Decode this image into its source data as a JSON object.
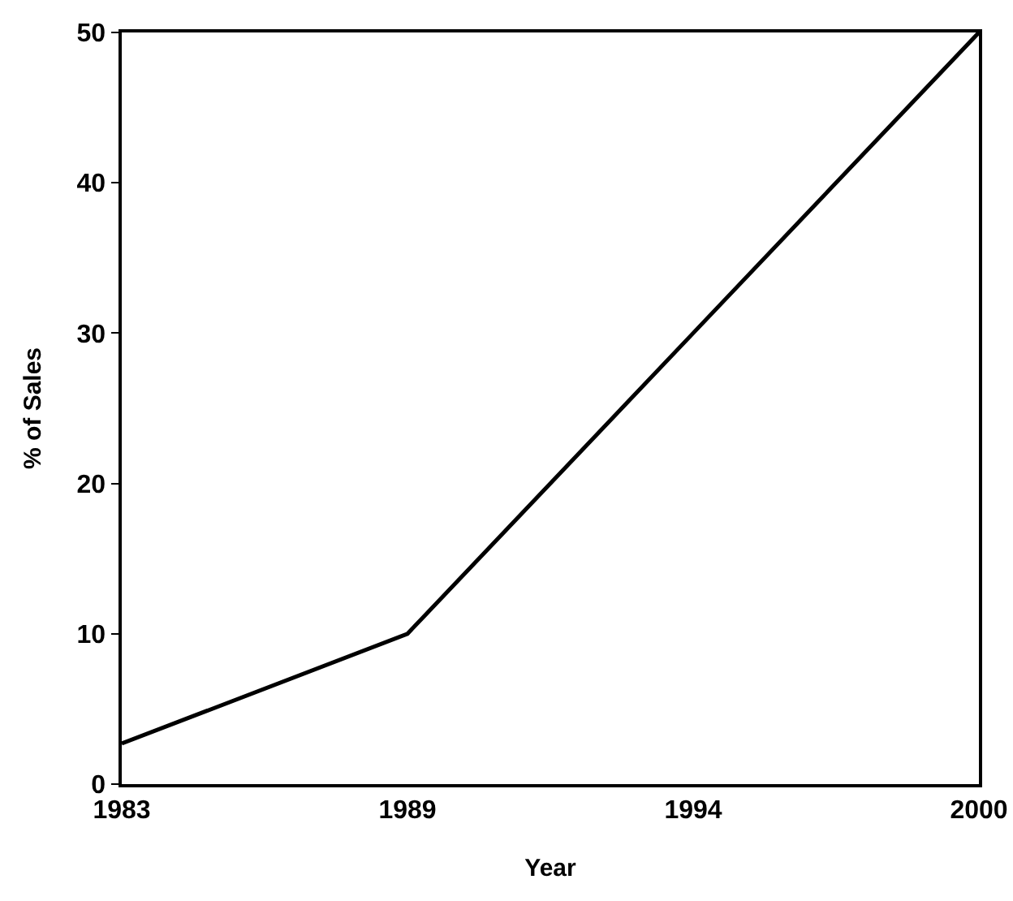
{
  "chart_data": {
    "type": "line",
    "xlabel": "Year",
    "ylabel": "% of Sales",
    "categories": [
      "1983",
      "1989",
      "1994",
      "2000"
    ],
    "series": [
      {
        "color": "#000000",
        "values": [
          2.7,
          10,
          30,
          50
        ]
      }
    ],
    "ylim": [
      0,
      50
    ],
    "yticks": [
      0,
      10,
      20,
      30,
      40,
      50
    ],
    "grid": false,
    "marker": "none",
    "line_style": "solid"
  }
}
